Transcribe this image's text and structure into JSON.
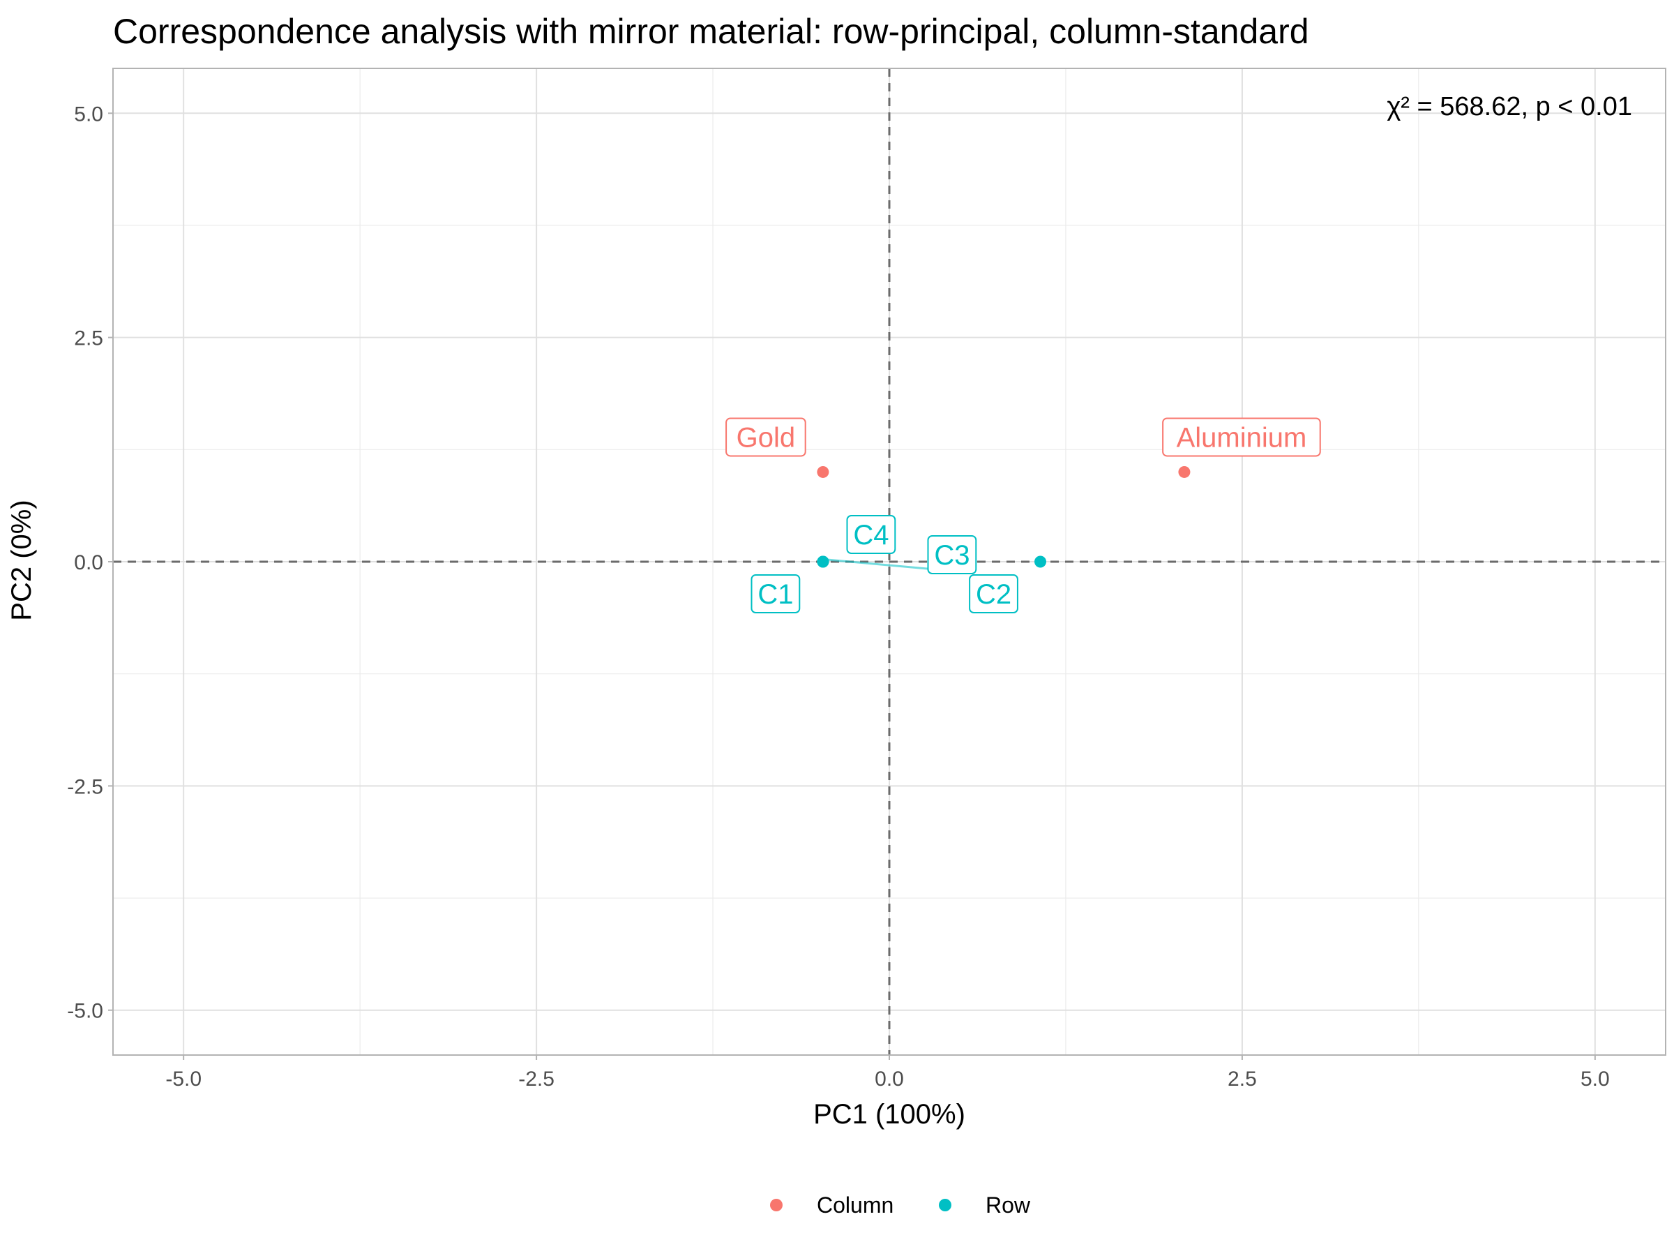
{
  "chart_data": {
    "type": "scatter",
    "title": "Correspondence analysis with mirror material: row-principal, column-standard",
    "xlabel": "PC1 (100%)",
    "ylabel": "PC2 (0%)",
    "xlim": [
      -5.5,
      5.5
    ],
    "ylim": [
      -5.5,
      5.5
    ],
    "xticks": [
      -5.0,
      -2.5,
      0.0,
      2.5,
      5.0
    ],
    "yticks": [
      -5.0,
      -2.5,
      0.0,
      2.5,
      5.0
    ],
    "xtick_labels": [
      "-5.0",
      "-2.5",
      "0.0",
      "2.5",
      "5.0"
    ],
    "ytick_labels": [
      "-5.0",
      "-2.5",
      "0.0",
      "2.5",
      "5.0"
    ],
    "grid": true,
    "reference_lines": {
      "x": 0,
      "y": 0,
      "style": "dashed"
    },
    "annotation": "χ² = 568.62, p < 0.01",
    "legend": {
      "position": "bottom",
      "entries": [
        {
          "label": "Column",
          "color": "#F8766D"
        },
        {
          "label": "Row",
          "color": "#00BFC4"
        }
      ]
    },
    "series": [
      {
        "name": "Column",
        "color": "#F8766D",
        "points": [
          {
            "label": "Gold",
            "x": -0.47,
            "y": 1.0
          },
          {
            "label": "Aluminium",
            "x": 2.09,
            "y": 1.0
          }
        ]
      },
      {
        "name": "Row",
        "color": "#00BFC4",
        "points": [
          {
            "label": "C1",
            "x": -0.47,
            "y": 0.0
          },
          {
            "label": "C2",
            "x": 1.07,
            "y": 0.0
          },
          {
            "label": "C3",
            "x": -0.47,
            "y": 0.0
          },
          {
            "label": "C4",
            "x": -0.47,
            "y": 0.0
          }
        ]
      }
    ]
  }
}
